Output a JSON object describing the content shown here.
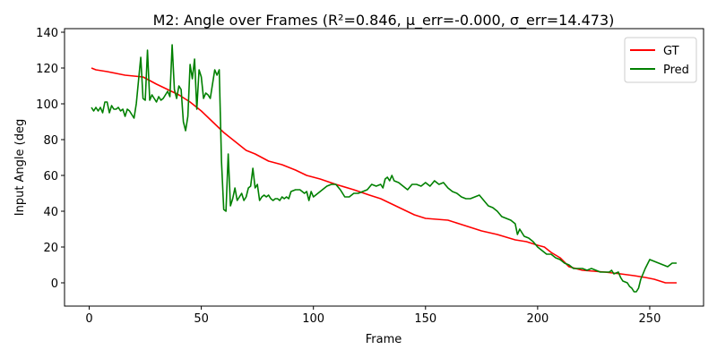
{
  "chart_data": {
    "type": "line",
    "title": "M2: Angle over Frames (R²=0.846, μ_err=-0.000, σ_err=14.473)",
    "xlabel": "Frame",
    "ylabel": "Input Angle (deg",
    "xlim": [
      -11,
      274
    ],
    "ylim": [
      -13,
      142
    ],
    "xticks": [
      0,
      50,
      100,
      150,
      200,
      250
    ],
    "yticks": [
      0,
      20,
      40,
      60,
      80,
      100,
      120,
      140
    ],
    "grid": false,
    "legend_position": "top-right",
    "series": [
      {
        "name": "GT",
        "color": "#ff0000",
        "points": [
          [
            1,
            120
          ],
          [
            3,
            119
          ],
          [
            8,
            118
          ],
          [
            12,
            117
          ],
          [
            16,
            116
          ],
          [
            24,
            115
          ],
          [
            27,
            113
          ],
          [
            30,
            111
          ],
          [
            35,
            108
          ],
          [
            40,
            105
          ],
          [
            45,
            101
          ],
          [
            50,
            96
          ],
          [
            55,
            90
          ],
          [
            60,
            84
          ],
          [
            65,
            79
          ],
          [
            70,
            74
          ],
          [
            74,
            72
          ],
          [
            80,
            68
          ],
          [
            86,
            66
          ],
          [
            92,
            63
          ],
          [
            97,
            60
          ],
          [
            103,
            58
          ],
          [
            110,
            55
          ],
          [
            118,
            52
          ],
          [
            125,
            49
          ],
          [
            130,
            47
          ],
          [
            135,
            44
          ],
          [
            140,
            41
          ],
          [
            145,
            38
          ],
          [
            150,
            36
          ],
          [
            160,
            35
          ],
          [
            165,
            33
          ],
          [
            170,
            31
          ],
          [
            175,
            29
          ],
          [
            182,
            27
          ],
          [
            190,
            24
          ],
          [
            195,
            23
          ],
          [
            200,
            21
          ],
          [
            203,
            20
          ],
          [
            206,
            17
          ],
          [
            210,
            14
          ],
          [
            214,
            9
          ],
          [
            220,
            7
          ],
          [
            230,
            6
          ],
          [
            237,
            5
          ],
          [
            243,
            4
          ],
          [
            248,
            3
          ],
          [
            252,
            2
          ],
          [
            257,
            0
          ],
          [
            262,
            0
          ]
        ]
      },
      {
        "name": "Pred",
        "color": "#008000",
        "points": [
          [
            1,
            98
          ],
          [
            2,
            96
          ],
          [
            3,
            98
          ],
          [
            4,
            96
          ],
          [
            5,
            98
          ],
          [
            6,
            95
          ],
          [
            7,
            101
          ],
          [
            8,
            101
          ],
          [
            9,
            95
          ],
          [
            10,
            99
          ],
          [
            11,
            97
          ],
          [
            12,
            97
          ],
          [
            13,
            98
          ],
          [
            14,
            96
          ],
          [
            15,
            97
          ],
          [
            16,
            93
          ],
          [
            17,
            97
          ],
          [
            18,
            96
          ],
          [
            19,
            94
          ],
          [
            20,
            92
          ],
          [
            21,
            100
          ],
          [
            22,
            113
          ],
          [
            23,
            126
          ],
          [
            24,
            103
          ],
          [
            25,
            102
          ],
          [
            26,
            130
          ],
          [
            27,
            102
          ],
          [
            28,
            105
          ],
          [
            29,
            103
          ],
          [
            30,
            101
          ],
          [
            31,
            104
          ],
          [
            32,
            102
          ],
          [
            33,
            103
          ],
          [
            34,
            105
          ],
          [
            35,
            107
          ],
          [
            36,
            104
          ],
          [
            37,
            133
          ],
          [
            38,
            108
          ],
          [
            39,
            103
          ],
          [
            40,
            110
          ],
          [
            41,
            108
          ],
          [
            42,
            90
          ],
          [
            43,
            85
          ],
          [
            44,
            93
          ],
          [
            45,
            122
          ],
          [
            46,
            114
          ],
          [
            47,
            125
          ],
          [
            48,
            97
          ],
          [
            49,
            119
          ],
          [
            50,
            115
          ],
          [
            51,
            103
          ],
          [
            52,
            106
          ],
          [
            53,
            105
          ],
          [
            54,
            103
          ],
          [
            55,
            111
          ],
          [
            56,
            119
          ],
          [
            57,
            116
          ],
          [
            58,
            119
          ],
          [
            59,
            68
          ],
          [
            60,
            41
          ],
          [
            61,
            40
          ],
          [
            62,
            72
          ],
          [
            63,
            43
          ],
          [
            64,
            47
          ],
          [
            65,
            53
          ],
          [
            66,
            46
          ],
          [
            67,
            48
          ],
          [
            68,
            50
          ],
          [
            69,
            46
          ],
          [
            70,
            48
          ],
          [
            71,
            53
          ],
          [
            72,
            54
          ],
          [
            73,
            64
          ],
          [
            74,
            53
          ],
          [
            75,
            55
          ],
          [
            76,
            46
          ],
          [
            77,
            48
          ],
          [
            78,
            49
          ],
          [
            79,
            48
          ],
          [
            80,
            49
          ],
          [
            81,
            47
          ],
          [
            82,
            46
          ],
          [
            83,
            47
          ],
          [
            84,
            47
          ],
          [
            85,
            46
          ],
          [
            86,
            48
          ],
          [
            87,
            47
          ],
          [
            88,
            48
          ],
          [
            89,
            47
          ],
          [
            90,
            51
          ],
          [
            92,
            52
          ],
          [
            94,
            52
          ],
          [
            96,
            50
          ],
          [
            97,
            51
          ],
          [
            98,
            46
          ],
          [
            99,
            51
          ],
          [
            100,
            48
          ],
          [
            102,
            50
          ],
          [
            104,
            52
          ],
          [
            106,
            54
          ],
          [
            108,
            55
          ],
          [
            110,
            55
          ],
          [
            112,
            52
          ],
          [
            114,
            48
          ],
          [
            116,
            48
          ],
          [
            118,
            50
          ],
          [
            120,
            50
          ],
          [
            122,
            51
          ],
          [
            124,
            52
          ],
          [
            126,
            55
          ],
          [
            128,
            54
          ],
          [
            130,
            55
          ],
          [
            131,
            53
          ],
          [
            132,
            58
          ],
          [
            133,
            59
          ],
          [
            134,
            57
          ],
          [
            135,
            60
          ],
          [
            136,
            57
          ],
          [
            138,
            56
          ],
          [
            140,
            54
          ],
          [
            142,
            52
          ],
          [
            144,
            55
          ],
          [
            146,
            55
          ],
          [
            148,
            54
          ],
          [
            150,
            56
          ],
          [
            152,
            54
          ],
          [
            154,
            57
          ],
          [
            156,
            55
          ],
          [
            158,
            56
          ],
          [
            160,
            53
          ],
          [
            162,
            51
          ],
          [
            164,
            50
          ],
          [
            166,
            48
          ],
          [
            168,
            47
          ],
          [
            170,
            47
          ],
          [
            172,
            48
          ],
          [
            174,
            49
          ],
          [
            176,
            46
          ],
          [
            178,
            43
          ],
          [
            180,
            42
          ],
          [
            182,
            40
          ],
          [
            184,
            37
          ],
          [
            186,
            36
          ],
          [
            188,
            35
          ],
          [
            190,
            33
          ],
          [
            191,
            27
          ],
          [
            192,
            30
          ],
          [
            194,
            26
          ],
          [
            196,
            25
          ],
          [
            198,
            23
          ],
          [
            200,
            20
          ],
          [
            202,
            18
          ],
          [
            204,
            16
          ],
          [
            206,
            16
          ],
          [
            208,
            14
          ],
          [
            210,
            13
          ],
          [
            212,
            11
          ],
          [
            214,
            10
          ],
          [
            216,
            8
          ],
          [
            218,
            8
          ],
          [
            220,
            8
          ],
          [
            222,
            7
          ],
          [
            224,
            8
          ],
          [
            226,
            7
          ],
          [
            228,
            6
          ],
          [
            230,
            6
          ],
          [
            232,
            6
          ],
          [
            233,
            7
          ],
          [
            234,
            5
          ],
          [
            236,
            6
          ],
          [
            237,
            3
          ],
          [
            238,
            1
          ],
          [
            240,
            0
          ],
          [
            241,
            -2
          ],
          [
            242,
            -3
          ],
          [
            243,
            -5
          ],
          [
            244,
            -5
          ],
          [
            245,
            -3
          ],
          [
            246,
            2
          ],
          [
            248,
            8
          ],
          [
            250,
            13
          ],
          [
            252,
            12
          ],
          [
            254,
            11
          ],
          [
            256,
            10
          ],
          [
            258,
            9
          ],
          [
            260,
            11
          ],
          [
            262,
            11
          ]
        ]
      }
    ]
  }
}
